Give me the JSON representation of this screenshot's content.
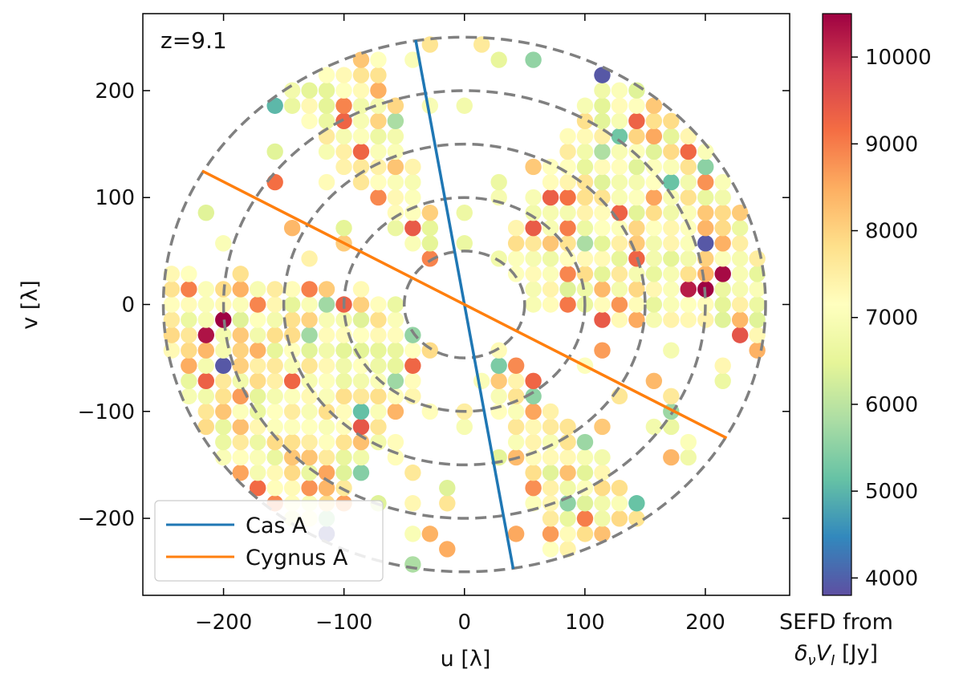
{
  "chart_data": {
    "type": "scatter",
    "annotation": "z=9.1",
    "xlabel": "u [λ]",
    "ylabel": "v [λ]",
    "xlim": [
      -267,
      270
    ],
    "ylim": [
      -272,
      272
    ],
    "xticks": [
      -200,
      -100,
      0,
      100,
      200
    ],
    "yticks": [
      -200,
      -100,
      0,
      100,
      200
    ],
    "xtick_labels": [
      "−200",
      "−100",
      "0",
      "100",
      "200"
    ],
    "ytick_labels": [
      "−200",
      "−100",
      "0",
      "100",
      "200"
    ],
    "grid": false,
    "dashed_circles": {
      "radii": [
        50,
        100,
        150,
        200,
        250
      ],
      "color": "#808080"
    },
    "points": {
      "grid_spacing": 14.3,
      "max_radius": 250,
      "excluded_wedges": [
        {
          "center_angle_deg": 264.7,
          "half_width": 22
        },
        {
          "center_angle_deg": 330.7,
          "half_width": 22
        }
      ],
      "highlight_values": [
        {
          "u": 200,
          "v": 14,
          "sefd": 10500
        },
        {
          "u": 215,
          "v": 28,
          "sefd": 10400
        },
        {
          "u": 186,
          "v": 14,
          "sefd": 10200
        },
        {
          "u": -200,
          "v": -14,
          "sefd": 10500
        },
        {
          "u": -215,
          "v": -28,
          "sefd": 10300
        },
        {
          "u": 200,
          "v": 57,
          "sefd": 3900
        },
        {
          "u": -200,
          "v": -57,
          "sefd": 3900
        },
        {
          "u": 114,
          "v": 214,
          "sefd": 3900
        },
        {
          "u": -114,
          "v": -214,
          "sefd": 3900
        }
      ]
    },
    "series": [
      {
        "name": "Cas A",
        "color": "#1f77b4",
        "x": [
          -40.5,
          40.5
        ],
        "y": [
          247.3,
          -247.3
        ]
      },
      {
        "name": "Cygnus A",
        "color": "#ff7f0e",
        "x": [
          -217.7,
          217.7
        ],
        "y": [
          124.9,
          -124.9
        ]
      }
    ],
    "legend_position": "bottom-left",
    "colorbar": {
      "label_line1": "SEFD from",
      "label_line2": "δνVI [Jy]",
      "range": [
        3800,
        10500
      ],
      "ticks": [
        4000,
        5000,
        6000,
        7000,
        8000,
        9000,
        10000
      ],
      "tick_labels": [
        "4000",
        "5000",
        "6000",
        "7000",
        "8000",
        "9000",
        "10000"
      ],
      "colormap": "Spectral_r",
      "stops": [
        "#5e4fa2",
        "#3288bd",
        "#66c2a5",
        "#abdda4",
        "#e6f598",
        "#ffffbf",
        "#fee08b",
        "#fdae61",
        "#f46d43",
        "#d53e4f",
        "#9e0142"
      ]
    }
  }
}
